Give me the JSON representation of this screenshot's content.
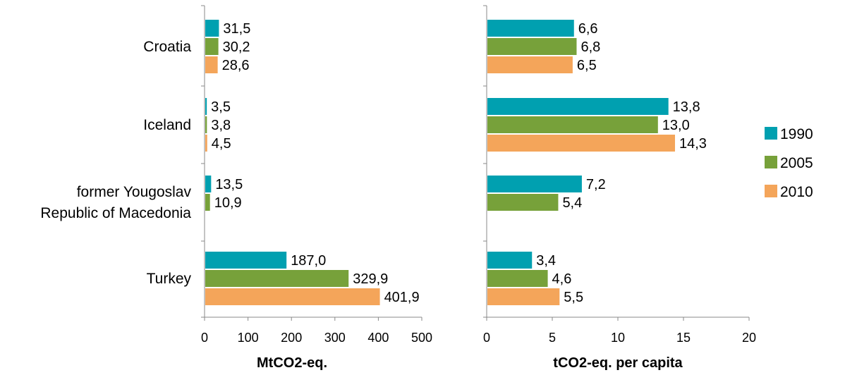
{
  "chart_data": {
    "type": "bar",
    "orientation": "horizontal",
    "categories": [
      "Croatia",
      "Iceland",
      "former Yougoslav Republic of Macedonia",
      "Turkey"
    ],
    "category_lines": [
      [
        "Croatia"
      ],
      [
        "Iceland"
      ],
      [
        "former Yougoslav",
        "Republic of Macedonia"
      ],
      [
        "Turkey"
      ]
    ],
    "legend": {
      "placement": "right",
      "entries": [
        {
          "name": "1990",
          "color": "#00A0B0"
        },
        {
          "name": "2005",
          "color": "#77A13A"
        },
        {
          "name": "2010",
          "color": "#F4A55A"
        }
      ]
    },
    "panels": [
      {
        "xlabel": "MtCO2-eq.",
        "xlim": [
          0,
          500
        ],
        "ticks": [
          "0",
          "100",
          "200",
          "300",
          "400",
          "500"
        ],
        "tick_values": [
          0,
          100,
          200,
          300,
          400,
          500
        ],
        "series": [
          {
            "name": "1990",
            "values": [
              31.5,
              3.5,
              13.5,
              187.0
            ],
            "labels": [
              "31,5",
              "3,5",
              "13,5",
              "187,0"
            ]
          },
          {
            "name": "2005",
            "values": [
              30.2,
              3.8,
              10.9,
              329.9
            ],
            "labels": [
              "30,2",
              "3,8",
              "10,9",
              "329,9"
            ]
          },
          {
            "name": "2010",
            "values": [
              28.6,
              4.5,
              null,
              401.9
            ],
            "labels": [
              "28,6",
              "4,5",
              "",
              "401,9"
            ]
          }
        ]
      },
      {
        "xlabel": "tCO2-eq. per capita",
        "xlim": [
          0,
          20
        ],
        "ticks": [
          "0",
          "5",
          "10",
          "15",
          "20"
        ],
        "tick_values": [
          0,
          5,
          10,
          15,
          20
        ],
        "series": [
          {
            "name": "1990",
            "values": [
              6.6,
              13.8,
              7.2,
              3.4
            ],
            "labels": [
              "6,6",
              "13,8",
              "7,2",
              "3,4"
            ]
          },
          {
            "name": "2005",
            "values": [
              6.8,
              13.0,
              5.4,
              4.6
            ],
            "labels": [
              "6,8",
              "13,0",
              "5,4",
              "4,6"
            ]
          },
          {
            "name": "2010",
            "values": [
              6.5,
              14.3,
              null,
              5.5
            ],
            "labels": [
              "6,5",
              "14,3",
              "",
              "5,5"
            ]
          }
        ]
      }
    ],
    "grid": false
  }
}
